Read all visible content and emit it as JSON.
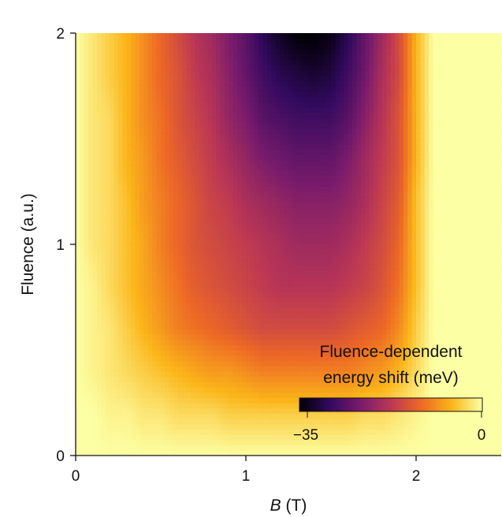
{
  "chart_data": {
    "type": "heatmap",
    "title": "",
    "xlabel_italic": "B",
    "xlabel_rest": " (T)",
    "ylabel": "Fluence (a.u.)",
    "xlim": [
      0,
      2.5
    ],
    "ylim": [
      0,
      2
    ],
    "xticks": [
      0,
      1,
      2
    ],
    "yticks": [
      0,
      1,
      2
    ],
    "x": [
      0,
      0.1,
      0.2,
      0.3,
      0.4,
      0.5,
      0.6,
      0.7,
      0.8,
      0.9,
      1.0,
      1.1,
      1.2,
      1.3,
      1.4,
      1.5,
      1.6,
      1.7,
      1.8,
      1.9,
      2.0,
      2.1,
      2.2,
      2.3,
      2.4,
      2.5
    ],
    "y": [
      0,
      0.2,
      0.4,
      0.6,
      0.8,
      1.0,
      1.2,
      1.4,
      1.6,
      1.8,
      2.0
    ],
    "z": [
      [
        0,
        0,
        0,
        0,
        0,
        0,
        0,
        0,
        0,
        0,
        0,
        0,
        0,
        0,
        0,
        0,
        0,
        0,
        0,
        0,
        0,
        0,
        0,
        0,
        0,
        0
      ],
      [
        0,
        0,
        -1,
        -1,
        -2,
        -2,
        -3,
        -3,
        -3,
        -4,
        -4,
        -4,
        -4,
        -4,
        -4,
        -4,
        -4,
        -3,
        -3,
        -2,
        -1,
        0,
        0,
        0,
        0,
        0
      ],
      [
        0,
        -1,
        -2,
        -3,
        -4,
        -5,
        -6,
        -7,
        -8,
        -8,
        -9,
        -10,
        -10,
        -10,
        -10,
        -10,
        -10,
        -9,
        -8,
        -6,
        -3,
        0,
        0,
        0,
        0,
        0
      ],
      [
        0,
        -1,
        -2,
        -4,
        -6,
        -8,
        -10,
        -11,
        -12,
        -13,
        -14,
        -15,
        -15,
        -15,
        -15,
        -15,
        -14,
        -13,
        -12,
        -9,
        -4,
        0,
        0,
        0,
        0,
        0
      ],
      [
        0,
        -1,
        -3,
        -5,
        -7,
        -9,
        -11,
        -13,
        -14,
        -15,
        -16,
        -17,
        -18,
        -18,
        -18,
        -18,
        -17,
        -16,
        -14,
        -11,
        -5,
        0,
        0,
        0,
        0,
        0
      ],
      [
        0,
        -2,
        -3,
        -5,
        -7,
        -10,
        -12,
        -14,
        -15,
        -16,
        -17,
        -18,
        -19,
        -20,
        -20,
        -20,
        -19,
        -17,
        -15,
        -12,
        -5,
        0,
        0,
        0,
        0,
        0
      ],
      [
        0,
        -2,
        -3,
        -5,
        -8,
        -10,
        -12,
        -14,
        -16,
        -17,
        -19,
        -20,
        -21,
        -22,
        -22,
        -22,
        -21,
        -19,
        -16,
        -13,
        -5,
        0,
        0,
        0,
        0,
        0
      ],
      [
        0,
        -2,
        -3,
        -6,
        -8,
        -11,
        -13,
        -15,
        -17,
        -19,
        -21,
        -23,
        -24,
        -25,
        -25,
        -25,
        -23,
        -20,
        -17,
        -14,
        -6,
        0,
        0,
        0,
        0,
        0
      ],
      [
        0,
        -2,
        -3,
        -6,
        -9,
        -11,
        -14,
        -16,
        -18,
        -21,
        -23,
        -26,
        -27,
        -28,
        -28,
        -28,
        -26,
        -22,
        -18,
        -14,
        -6,
        0,
        0,
        0,
        0,
        0
      ],
      [
        0,
        -2,
        -4,
        -6,
        -9,
        -12,
        -14,
        -17,
        -19,
        -22,
        -25,
        -28,
        -30,
        -31,
        -32,
        -31,
        -28,
        -24,
        -19,
        -15,
        -6,
        0,
        0,
        0,
        0,
        0
      ],
      [
        0,
        -2,
        -4,
        -6,
        -9,
        -12,
        -15,
        -18,
        -20,
        -23,
        -26,
        -30,
        -33,
        -35,
        -35,
        -34,
        -30,
        -25,
        -20,
        -15,
        -6,
        0,
        0,
        0,
        0,
        0
      ]
    ],
    "colorbar": {
      "title_line1": "Fluence-dependent",
      "title_line2": "energy shift (meV)",
      "min": -35,
      "max": 0,
      "min_label": "−35",
      "max_label": "0",
      "colormap": "inferno",
      "colormap_stops": [
        "#000004",
        "#320a5e",
        "#781b6c",
        "#bc3754",
        "#ed6925",
        "#fbb61a",
        "#fcffa4"
      ]
    }
  }
}
